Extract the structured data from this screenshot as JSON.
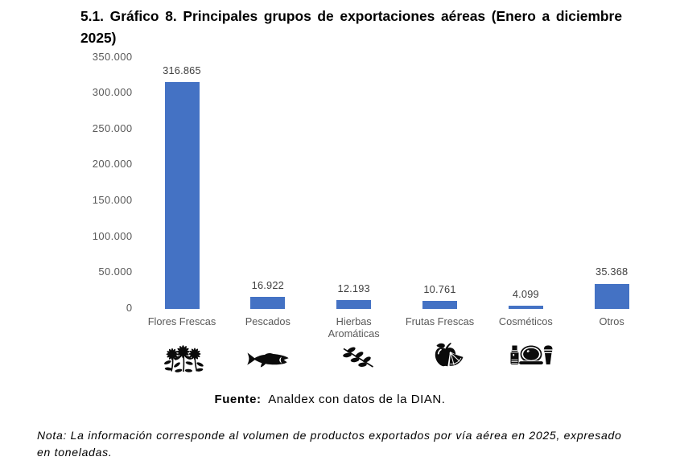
{
  "heading": "5.1. Gráfico 8. Principales grupos de exportaciones aéreas (Enero a diciembre 2025)",
  "chart_data": {
    "type": "bar",
    "title": "",
    "categories": [
      "Flores Frescas",
      "Pescados",
      "Hierbas Aromáticas",
      "Frutas Frescas",
      "Cosméticos",
      "Otros"
    ],
    "values": [
      316865,
      16922,
      12193,
      10761,
      4099,
      35368
    ],
    "value_labels": [
      "316.865",
      "16.922",
      "12.193",
      "10.761",
      "4.099",
      "35.368"
    ],
    "category_icons": [
      "flowers-icon",
      "fish-icon",
      "herb-icon",
      "fruit-icon",
      "cosmetics-icon",
      null
    ],
    "xlabel": "",
    "ylabel": "",
    "y_axis": {
      "min": 0,
      "max": 350000,
      "step": 50000,
      "tick_labels": [
        "0",
        "50.000",
        "100.000",
        "150.000",
        "200.000",
        "250.000",
        "300.000",
        "350.000"
      ]
    },
    "grid": false,
    "legend": false,
    "bar_color": "#4472C4",
    "value_label_color": "#404040",
    "axis_label_color": "#595959"
  },
  "source": {
    "label": "Fuente:",
    "text": "Analdex con datos de la DIAN."
  },
  "note": "Nota: La información corresponde al volumen de productos exportados por vía aérea en 2025, expresado en toneladas."
}
